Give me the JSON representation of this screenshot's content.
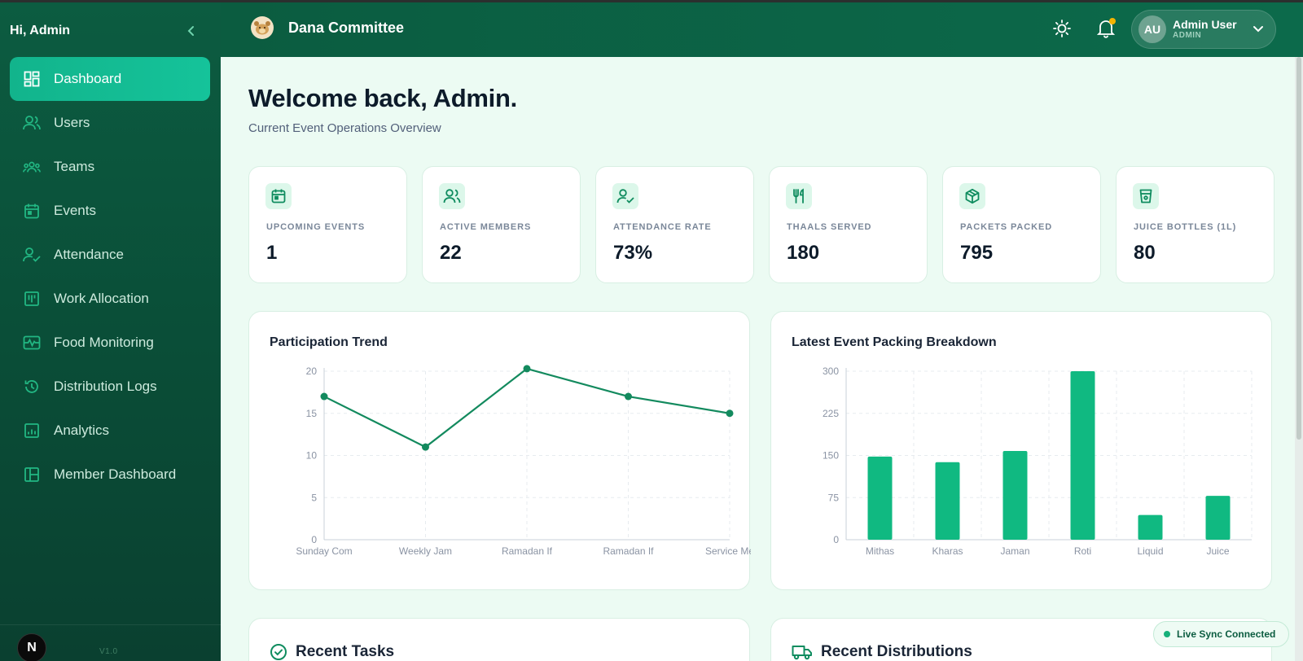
{
  "sidebar": {
    "greeting": "Hi, Admin",
    "items": [
      {
        "label": "Dashboard",
        "icon": "dashboard-icon",
        "active": true
      },
      {
        "label": "Users",
        "icon": "users-icon"
      },
      {
        "label": "Teams",
        "icon": "teams-icon"
      },
      {
        "label": "Events",
        "icon": "calendar-icon"
      },
      {
        "label": "Attendance",
        "icon": "user-check-icon"
      },
      {
        "label": "Work Allocation",
        "icon": "kanban-icon"
      },
      {
        "label": "Food Monitoring",
        "icon": "monitor-icon"
      },
      {
        "label": "Distribution Logs",
        "icon": "history-icon"
      },
      {
        "label": "Analytics",
        "icon": "analytics-icon"
      },
      {
        "label": "Member Dashboard",
        "icon": "layout-icon"
      }
    ],
    "version": "V1.0",
    "badge": "N"
  },
  "header": {
    "brand": "Dana Committee",
    "user": {
      "initials": "AU",
      "name": "Admin User",
      "role": "ADMIN"
    }
  },
  "main": {
    "title": "Welcome back, Admin.",
    "subtitle": "Current Event Operations Overview",
    "stats": [
      {
        "label": "Upcoming Events",
        "value": "1",
        "icon": "calendar-icon"
      },
      {
        "label": "Active Members",
        "value": "22",
        "icon": "users-icon"
      },
      {
        "label": "Attendance Rate",
        "value": "73%",
        "icon": "user-check-icon"
      },
      {
        "label": "Thaals Served",
        "value": "180",
        "icon": "utensils-icon"
      },
      {
        "label": "Packets Packed",
        "value": "795",
        "icon": "package-icon"
      },
      {
        "label": "Juice Bottles (1L)",
        "value": "80",
        "icon": "cup-icon"
      }
    ],
    "recent_tasks_title": "Recent Tasks",
    "recent_distributions_title": "Recent Distributions",
    "live_sync": "Live Sync Connected"
  },
  "colors": {
    "accent": "#10b981",
    "line": "#138a5e",
    "sidebar": "#0b5a40"
  },
  "chart_data": [
    {
      "type": "line",
      "title": "Participation Trend",
      "categories": [
        "Sunday Com",
        "Weekly Jam",
        "Ramadan If",
        "Ramadan If",
        "Service Me"
      ],
      "values": [
        17,
        11,
        20.3,
        17,
        15
      ],
      "ylim": [
        0,
        20
      ],
      "yticks": [
        0,
        5,
        10,
        15,
        20
      ],
      "grid": true
    },
    {
      "type": "bar",
      "title": "Latest Event Packing Breakdown",
      "categories": [
        "Mithas",
        "Kharas",
        "Jaman",
        "Roti",
        "Liquid",
        "Juice"
      ],
      "values": [
        148,
        138,
        158,
        300,
        44,
        78
      ],
      "ylim": [
        0,
        300
      ],
      "yticks": [
        0,
        75,
        150,
        225,
        300
      ],
      "grid": true
    }
  ]
}
